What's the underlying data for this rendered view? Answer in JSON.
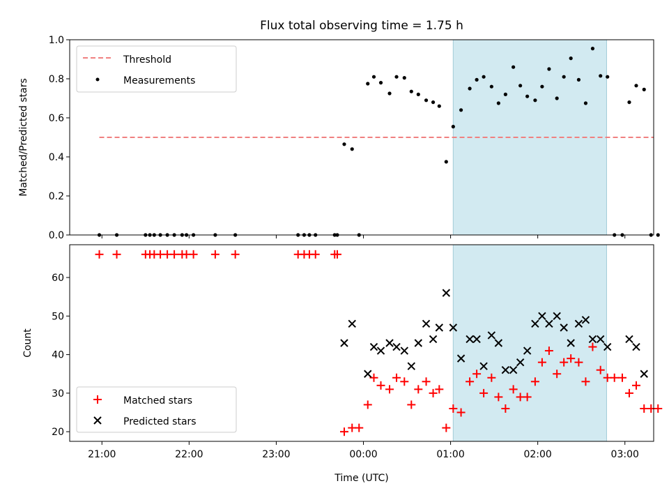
{
  "chart_data": [
    {
      "type": "scatter",
      "title": "Flux total observing time = 1.75 h",
      "ylabel": "Matched/Predicted stars",
      "xlim_hours": [
        20.63,
        27.33
      ],
      "ylim": [
        0,
        1.0
      ],
      "yticks": [
        "0.0",
        "0.2",
        "0.4",
        "0.6",
        "0.8",
        "1.0"
      ],
      "grid": false,
      "legend_position": "top-left",
      "legend": [
        "Threshold",
        "Measurements"
      ],
      "shaded_interval_hours": [
        25.03,
        26.79
      ],
      "threshold": {
        "name": "Threshold",
        "value": 0.5,
        "x_range_hours": [
          20.97,
          27.33
        ],
        "color": "#f08080",
        "style": "dashed"
      },
      "series": [
        {
          "name": "Measurements",
          "color": "#000000",
          "points": [
            [
              20.97,
              0.0
            ],
            [
              21.17,
              0.0
            ],
            [
              21.5,
              0.0
            ],
            [
              21.55,
              0.0
            ],
            [
              21.6,
              0.0
            ],
            [
              21.67,
              0.0
            ],
            [
              21.75,
              0.0
            ],
            [
              21.83,
              0.0
            ],
            [
              21.92,
              0.0
            ],
            [
              21.97,
              0.0
            ],
            [
              22.05,
              0.0
            ],
            [
              22.3,
              0.0
            ],
            [
              22.53,
              0.0
            ],
            [
              23.25,
              0.0
            ],
            [
              23.32,
              0.0
            ],
            [
              23.38,
              0.0
            ],
            [
              23.45,
              0.0
            ],
            [
              23.67,
              0.0
            ],
            [
              23.7,
              0.0
            ],
            [
              23.78,
              0.465
            ],
            [
              23.87,
              0.44
            ],
            [
              23.95,
              0.0
            ],
            [
              24.05,
              0.775
            ],
            [
              24.12,
              0.81
            ],
            [
              24.2,
              0.78
            ],
            [
              24.3,
              0.725
            ],
            [
              24.38,
              0.81
            ],
            [
              24.47,
              0.805
            ],
            [
              24.55,
              0.735
            ],
            [
              24.63,
              0.72
            ],
            [
              24.72,
              0.69
            ],
            [
              24.8,
              0.68
            ],
            [
              24.87,
              0.66
            ],
            [
              24.95,
              0.375
            ],
            [
              25.03,
              0.555
            ],
            [
              25.12,
              0.64
            ],
            [
              25.22,
              0.75
            ],
            [
              25.3,
              0.795
            ],
            [
              25.38,
              0.81
            ],
            [
              25.47,
              0.76
            ],
            [
              25.55,
              0.675
            ],
            [
              25.63,
              0.72
            ],
            [
              25.72,
              0.86
            ],
            [
              25.8,
              0.765
            ],
            [
              25.88,
              0.71
            ],
            [
              25.97,
              0.69
            ],
            [
              26.05,
              0.76
            ],
            [
              26.13,
              0.85
            ],
            [
              26.22,
              0.7
            ],
            [
              26.3,
              0.81
            ],
            [
              26.38,
              0.905
            ],
            [
              26.47,
              0.795
            ],
            [
              26.55,
              0.675
            ],
            [
              26.63,
              0.955
            ],
            [
              26.72,
              0.815
            ],
            [
              26.8,
              0.81
            ],
            [
              26.88,
              0.0
            ],
            [
              26.97,
              0.0
            ],
            [
              27.05,
              0.68
            ],
            [
              27.13,
              0.765
            ],
            [
              27.22,
              0.745
            ],
            [
              27.3,
              0.0
            ],
            [
              27.38,
              0.0
            ]
          ]
        }
      ]
    },
    {
      "type": "scatter",
      "xlabel": "Time (UTC)",
      "ylabel": "Count",
      "xlim_hours": [
        20.63,
        27.33
      ],
      "ylim": [
        17.5,
        68.5
      ],
      "yticks": [
        "20",
        "30",
        "40",
        "50",
        "60"
      ],
      "xticks": [
        "21:00",
        "22:00",
        "23:00",
        "00:00",
        "01:00",
        "02:00",
        "03:00"
      ],
      "grid": false,
      "legend_position": "bottom-left",
      "legend": [
        "Matched stars",
        "Predicted stars"
      ],
      "shaded_interval_hours": [
        25.03,
        26.79
      ],
      "series": [
        {
          "name": "Matched stars",
          "marker": "plus",
          "color": "#ff0000",
          "points": [
            [
              20.97,
              66
            ],
            [
              21.17,
              66
            ],
            [
              21.5,
              66
            ],
            [
              21.55,
              66
            ],
            [
              21.6,
              66
            ],
            [
              21.67,
              66
            ],
            [
              21.75,
              66
            ],
            [
              21.83,
              66
            ],
            [
              21.92,
              66
            ],
            [
              21.97,
              66
            ],
            [
              22.05,
              66
            ],
            [
              22.3,
              66
            ],
            [
              22.53,
              66
            ],
            [
              23.25,
              66
            ],
            [
              23.32,
              66
            ],
            [
              23.38,
              66
            ],
            [
              23.45,
              66
            ],
            [
              23.67,
              66
            ],
            [
              23.7,
              66
            ],
            [
              23.78,
              20
            ],
            [
              23.87,
              21
            ],
            [
              23.95,
              21
            ],
            [
              24.05,
              27
            ],
            [
              24.12,
              34
            ],
            [
              24.2,
              32
            ],
            [
              24.3,
              31
            ],
            [
              24.38,
              34
            ],
            [
              24.47,
              33
            ],
            [
              24.55,
              27
            ],
            [
              24.63,
              31
            ],
            [
              24.72,
              33
            ],
            [
              24.8,
              30
            ],
            [
              24.87,
              31
            ],
            [
              24.95,
              21
            ],
            [
              25.03,
              26
            ],
            [
              25.12,
              25
            ],
            [
              25.22,
              33
            ],
            [
              25.3,
              35
            ],
            [
              25.38,
              30
            ],
            [
              25.47,
              34
            ],
            [
              25.55,
              29
            ],
            [
              25.63,
              26
            ],
            [
              25.72,
              31
            ],
            [
              25.8,
              29
            ],
            [
              25.88,
              29
            ],
            [
              25.97,
              33
            ],
            [
              26.05,
              38
            ],
            [
              26.13,
              41
            ],
            [
              26.22,
              35
            ],
            [
              26.3,
              38
            ],
            [
              26.38,
              39
            ],
            [
              26.47,
              38
            ],
            [
              26.55,
              33
            ],
            [
              26.63,
              42
            ],
            [
              26.72,
              36
            ],
            [
              26.8,
              34
            ],
            [
              26.88,
              34
            ],
            [
              26.97,
              34
            ],
            [
              27.05,
              30
            ],
            [
              27.13,
              32
            ],
            [
              27.22,
              26
            ],
            [
              27.3,
              26
            ],
            [
              27.38,
              26
            ]
          ]
        },
        {
          "name": "Predicted stars",
          "marker": "x",
          "color": "#000000",
          "points": [
            [
              23.78,
              43
            ],
            [
              23.87,
              48
            ],
            [
              24.05,
              35
            ],
            [
              24.12,
              42
            ],
            [
              24.2,
              41
            ],
            [
              24.3,
              43
            ],
            [
              24.38,
              42
            ],
            [
              24.47,
              41
            ],
            [
              24.55,
              37
            ],
            [
              24.63,
              43
            ],
            [
              24.72,
              48
            ],
            [
              24.8,
              44
            ],
            [
              24.87,
              47
            ],
            [
              24.95,
              56
            ],
            [
              25.03,
              47
            ],
            [
              25.12,
              39
            ],
            [
              25.22,
              44
            ],
            [
              25.3,
              44
            ],
            [
              25.38,
              37
            ],
            [
              25.47,
              45
            ],
            [
              25.55,
              43
            ],
            [
              25.63,
              36
            ],
            [
              25.72,
              36
            ],
            [
              25.8,
              38
            ],
            [
              25.88,
              41
            ],
            [
              25.97,
              48
            ],
            [
              26.05,
              50
            ],
            [
              26.13,
              48
            ],
            [
              26.22,
              50
            ],
            [
              26.3,
              47
            ],
            [
              26.38,
              43
            ],
            [
              26.47,
              48
            ],
            [
              26.55,
              49
            ],
            [
              26.63,
              44
            ],
            [
              26.72,
              44
            ],
            [
              26.8,
              42
            ],
            [
              27.05,
              44
            ],
            [
              27.13,
              42
            ],
            [
              27.22,
              35
            ]
          ]
        }
      ]
    }
  ]
}
